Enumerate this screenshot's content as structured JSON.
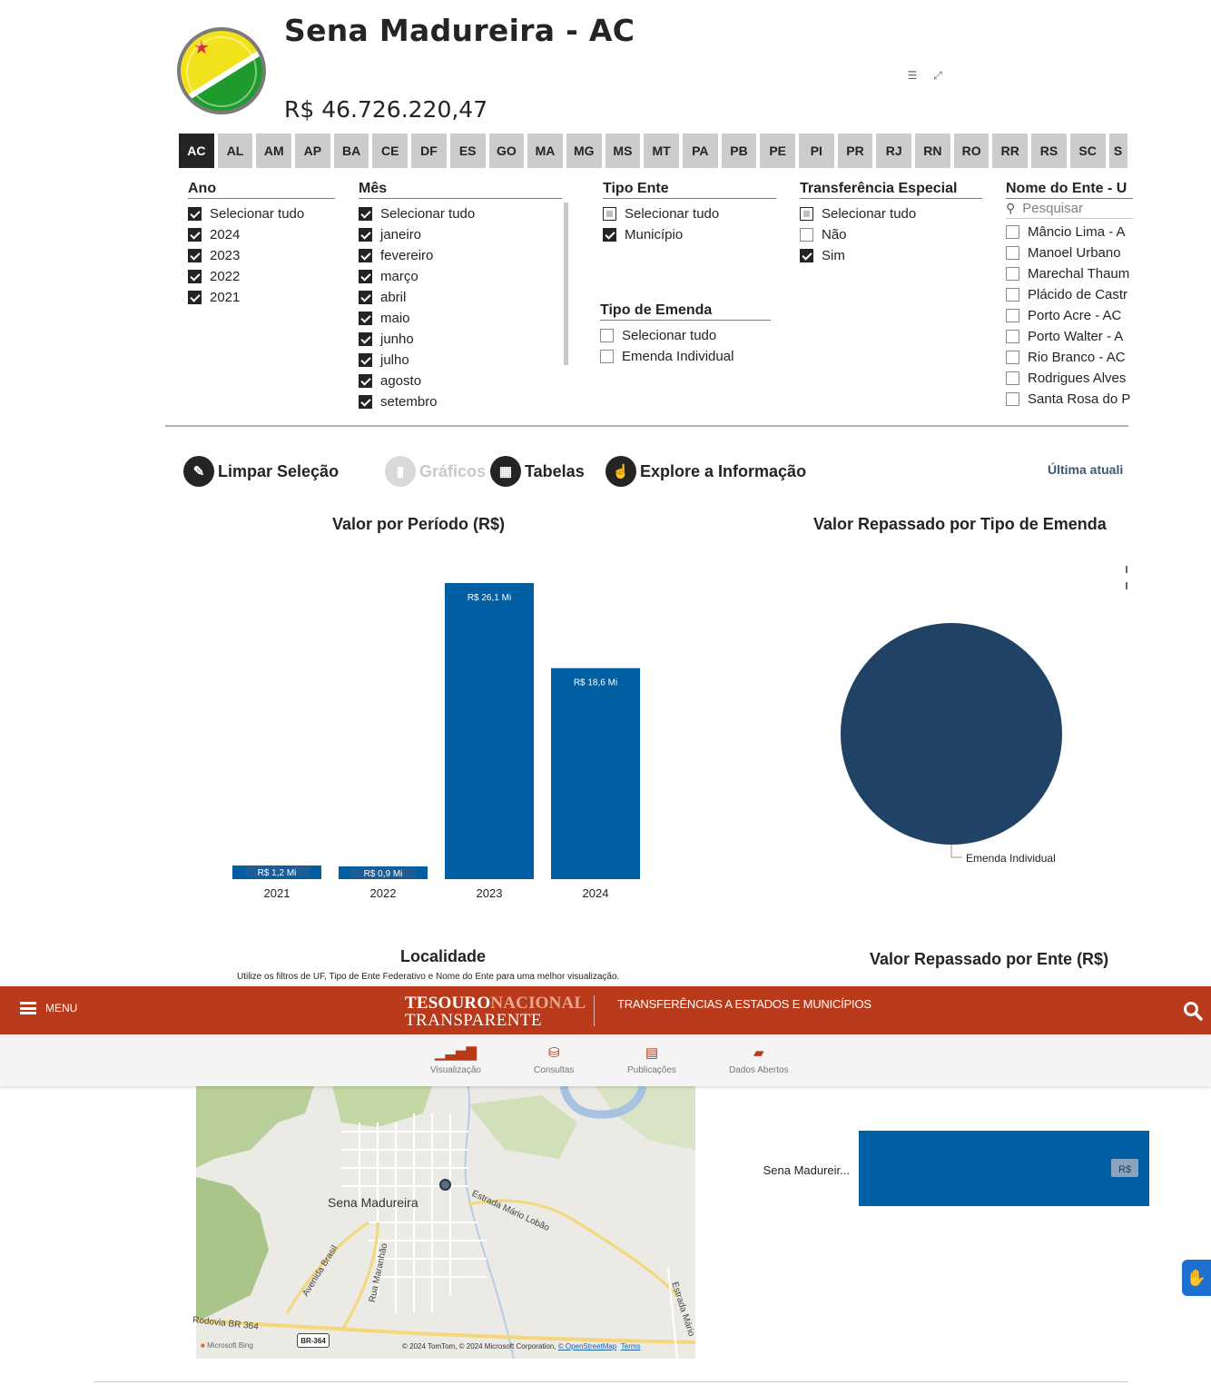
{
  "header": {
    "city_title": "Sena Madureira - AC",
    "total_value": "R$ 46.726.220,47",
    "flag_icon": "acre-flag-icon"
  },
  "uf_tabs": [
    "AC",
    "AL",
    "AM",
    "AP",
    "BA",
    "CE",
    "DF",
    "ES",
    "GO",
    "MA",
    "MG",
    "MS",
    "MT",
    "PA",
    "PB",
    "PE",
    "PI",
    "PR",
    "RJ",
    "RN",
    "RO",
    "RR",
    "RS",
    "SC",
    "S"
  ],
  "uf_selected": "AC",
  "slicers": {
    "ano": {
      "title": "Ano",
      "options": [
        {
          "label": "Selecionar tudo",
          "state": "checked"
        },
        {
          "label": "2024",
          "state": "checked"
        },
        {
          "label": "2023",
          "state": "checked"
        },
        {
          "label": "2022",
          "state": "checked"
        },
        {
          "label": "2021",
          "state": "checked"
        }
      ]
    },
    "mes": {
      "title": "Mês",
      "options": [
        {
          "label": "Selecionar tudo",
          "state": "checked"
        },
        {
          "label": "janeiro",
          "state": "checked"
        },
        {
          "label": "fevereiro",
          "state": "checked"
        },
        {
          "label": "março",
          "state": "checked"
        },
        {
          "label": "abril",
          "state": "checked"
        },
        {
          "label": "maio",
          "state": "checked"
        },
        {
          "label": "junho",
          "state": "checked"
        },
        {
          "label": "julho",
          "state": "checked"
        },
        {
          "label": "agosto",
          "state": "checked"
        },
        {
          "label": "setembro",
          "state": "checked"
        }
      ]
    },
    "tipo_ente": {
      "title": "Tipo Ente",
      "options": [
        {
          "label": "Selecionar tudo",
          "state": "partial"
        },
        {
          "label": "Município",
          "state": "checked"
        }
      ]
    },
    "tipo_emenda": {
      "title": "Tipo de Emenda",
      "options": [
        {
          "label": "Selecionar tudo",
          "state": "empty"
        },
        {
          "label": "Emenda Individual",
          "state": "empty"
        }
      ]
    },
    "transferencia": {
      "title": "Transferência Especial",
      "options": [
        {
          "label": "Selecionar tudo",
          "state": "partial"
        },
        {
          "label": "Não",
          "state": "empty"
        },
        {
          "label": "Sim",
          "state": "checked"
        }
      ]
    },
    "nome_ente": {
      "title": "Nome do Ente - U",
      "search_placeholder": "Pesquisar",
      "options": [
        {
          "label": "Mâncio Lima - A",
          "state": "empty"
        },
        {
          "label": "Manoel Urbano",
          "state": "empty"
        },
        {
          "label": "Marechal Thaum",
          "state": "empty"
        },
        {
          "label": "Plácido de Castr",
          "state": "empty"
        },
        {
          "label": "Porto Acre - AC",
          "state": "empty"
        },
        {
          "label": "Porto Walter - A",
          "state": "empty"
        },
        {
          "label": "Rio Branco - AC",
          "state": "empty"
        },
        {
          "label": "Rodrigues Alves",
          "state": "empty"
        },
        {
          "label": "Santa Rosa do P",
          "state": "empty"
        }
      ]
    }
  },
  "actions": {
    "limpar": "Limpar Seleção",
    "graficos": "Gráficos",
    "tabelas": "Tabelas",
    "explore": "Explore a Informação",
    "last_update": "Última atuali"
  },
  "chart_titles": {
    "periodo": "Valor por Período (R$)",
    "tipo_emenda": "Valor Repassado por Tipo de Emenda",
    "localidade": "Localidade",
    "localidade_sub": "Utilize os filtros de UF, Tipo de Ente Federativo e Nome do Ente para uma melhor visualização.",
    "ente": "Valor Repassado por Ente (R$)"
  },
  "chart_data": [
    {
      "type": "bar",
      "title": "Valor por Período (R$)",
      "categories": [
        "2021",
        "2022",
        "2023",
        "2024"
      ],
      "values": [
        1.2,
        0.9,
        26.1,
        18.6
      ],
      "data_labels": [
        "R$ 1,2 Mi",
        "R$ 0,9 Mi",
        "R$ 26,1 Mi",
        "R$ 18,6 Mi"
      ],
      "unit": "R$ Mi",
      "color": "#005ea2"
    },
    {
      "type": "pie",
      "title": "Valor Repassado por Tipo de Emenda",
      "categories": [
        "Emenda Individual"
      ],
      "values": [
        100
      ],
      "color": "#1f4266"
    },
    {
      "type": "bar",
      "title": "Valor Repassado por Ente (R$)",
      "categories": [
        "Sena Madureir..."
      ],
      "values": [
        46.7
      ],
      "data_labels": [
        "R$"
      ],
      "color": "#005ea2"
    }
  ],
  "map": {
    "city_label": "Sena Madureira",
    "roads": [
      "Estrada Mário Lobão",
      "Avenida Brasil",
      "Rua Maranhão",
      "Estrada Mário",
      "Rodovia BR 364"
    ],
    "shield": "BR-364",
    "bing": "Microsoft Bing",
    "credit": "© 2024 TomTom, © 2024 Microsoft Corporation,",
    "osm": "© OpenStreetMap",
    "terms": "Terms"
  },
  "site_header": {
    "menu_label": "MENU",
    "logo_line1_a": "TESOURO",
    "logo_line1_b": "NACIONAL",
    "logo_line2": "TRANSPARENTE",
    "subtitle": "TRANSFERÊNCIAS A ESTADOS E MUNICÍPIOS",
    "brand_color": "#b83a1b"
  },
  "subnav": [
    {
      "label": "Visualização",
      "icon": "bar-chart-icon"
    },
    {
      "label": "Consultas",
      "icon": "database-icon"
    },
    {
      "label": "Publicações",
      "icon": "newspaper-icon"
    },
    {
      "label": "Dados Abertos",
      "icon": "folder-open-icon"
    }
  ]
}
